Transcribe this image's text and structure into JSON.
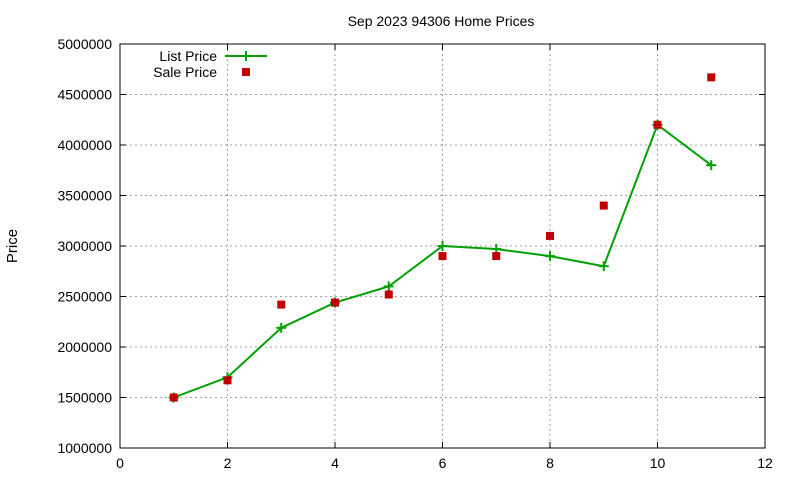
{
  "chart_data": {
    "type": "line",
    "title": "Sep 2023 94306 Home Prices",
    "xlabel": "",
    "ylabel": "Price",
    "xlim": [
      0,
      12
    ],
    "ylim": [
      1000000,
      5000000
    ],
    "xticks": [
      0,
      2,
      4,
      6,
      8,
      10,
      12
    ],
    "yticks": [
      1000000,
      1500000,
      2000000,
      2500000,
      3000000,
      3500000,
      4000000,
      4500000,
      5000000
    ],
    "grid": true,
    "legend_position": "top-left",
    "series": [
      {
        "name": "List Price",
        "style": "line-with-plus-markers",
        "color": "#00a000",
        "x": [
          1,
          2,
          3,
          4,
          5,
          6,
          7,
          8,
          9,
          10,
          11
        ],
        "y": [
          1500000,
          1700000,
          2190000,
          2440000,
          2600000,
          3000000,
          2970000,
          2900000,
          2800000,
          4200000,
          3800000
        ]
      },
      {
        "name": "Sale Price",
        "style": "square-markers",
        "color": "#c00000",
        "x": [
          1,
          2,
          3,
          4,
          5,
          6,
          7,
          8,
          9,
          10,
          11
        ],
        "y": [
          1500000,
          1670000,
          2420000,
          2440000,
          2520000,
          2900000,
          2900000,
          3100000,
          3400000,
          4200000,
          4670000
        ]
      }
    ]
  }
}
